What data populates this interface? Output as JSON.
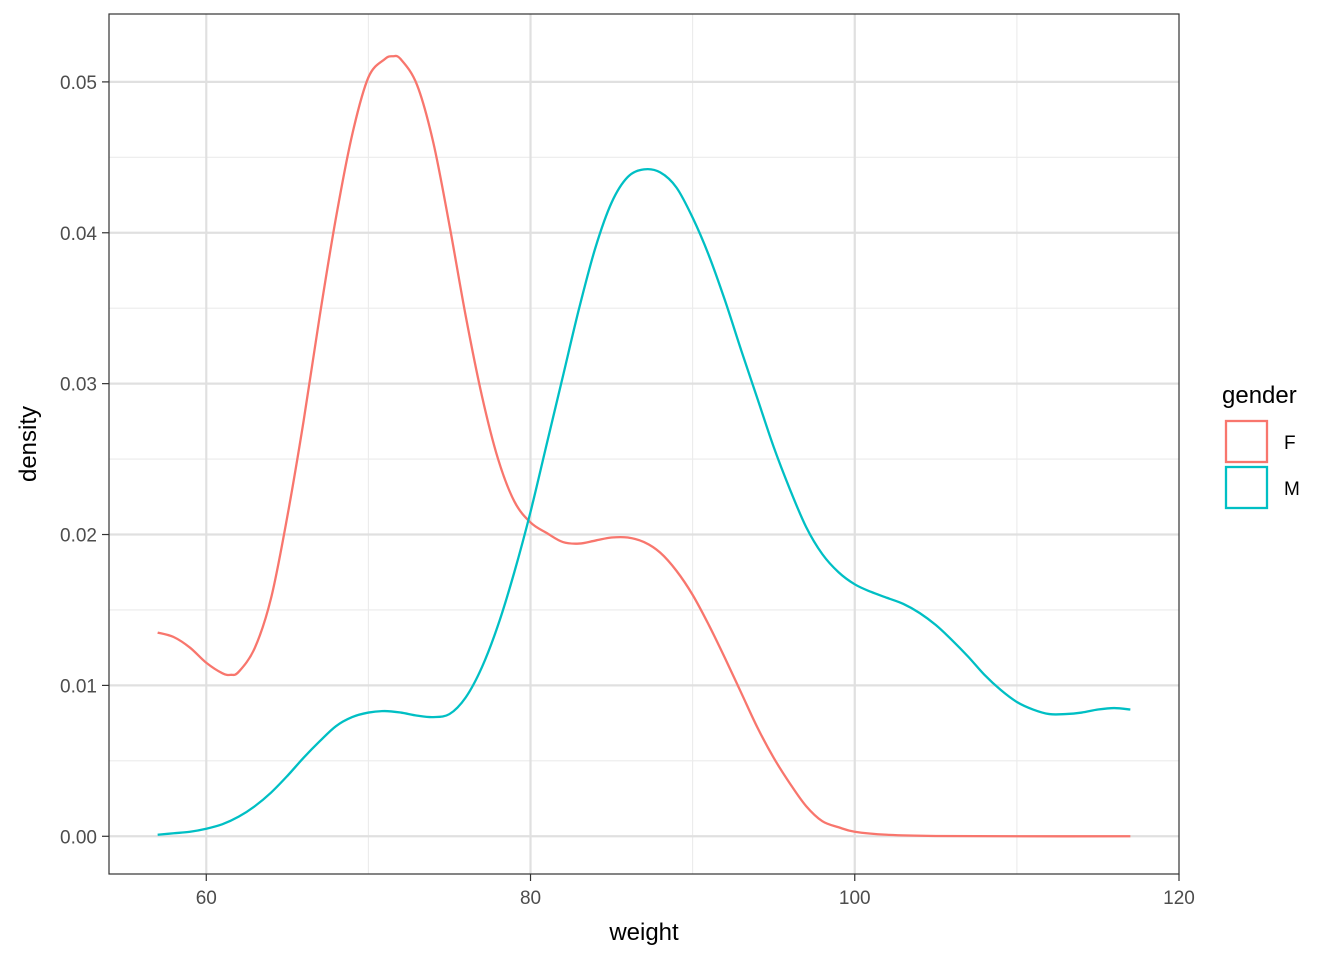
{
  "chart_data": {
    "type": "line",
    "title": "",
    "xlabel": "weight",
    "ylabel": "density",
    "xlim": [
      54,
      120
    ],
    "ylim": [
      -0.0025,
      0.0545
    ],
    "x_ticks": [
      60,
      80,
      100,
      120
    ],
    "x_tick_labels": [
      "60",
      "80",
      "100",
      "120"
    ],
    "y_ticks": [
      0.0,
      0.01,
      0.02,
      0.03,
      0.04,
      0.05
    ],
    "y_tick_labels": [
      "0.00",
      "0.01",
      "0.02",
      "0.03",
      "0.04",
      "0.05"
    ],
    "grid": true,
    "legend": {
      "title": "gender",
      "position": "right"
    },
    "series": [
      {
        "name": "F",
        "color": "#F8766D",
        "points": [
          [
            57,
            0.0135
          ],
          [
            58,
            0.0132
          ],
          [
            59,
            0.0125
          ],
          [
            60,
            0.0115
          ],
          [
            61,
            0.0108
          ],
          [
            61.5,
            0.0107
          ],
          [
            62,
            0.0109
          ],
          [
            63,
            0.0125
          ],
          [
            64,
            0.0158
          ],
          [
            65,
            0.0212
          ],
          [
            66,
            0.0275
          ],
          [
            67,
            0.0345
          ],
          [
            68,
            0.041
          ],
          [
            69,
            0.0465
          ],
          [
            70,
            0.0503
          ],
          [
            71,
            0.0515
          ],
          [
            71.5,
            0.0517
          ],
          [
            72,
            0.0515
          ],
          [
            73,
            0.0498
          ],
          [
            74,
            0.046
          ],
          [
            75,
            0.0405
          ],
          [
            76,
            0.0345
          ],
          [
            77,
            0.0292
          ],
          [
            78,
            0.025
          ],
          [
            79,
            0.0222
          ],
          [
            80,
            0.0208
          ],
          [
            81,
            0.0201
          ],
          [
            82,
            0.0195
          ],
          [
            83,
            0.0194
          ],
          [
            84,
            0.0196
          ],
          [
            85,
            0.0198
          ],
          [
            86,
            0.0198
          ],
          [
            87,
            0.0195
          ],
          [
            88,
            0.0188
          ],
          [
            89,
            0.0176
          ],
          [
            90,
            0.016
          ],
          [
            91,
            0.014
          ],
          [
            92,
            0.0118
          ],
          [
            93,
            0.0095
          ],
          [
            94,
            0.0072
          ],
          [
            95,
            0.0052
          ],
          [
            96,
            0.0035
          ],
          [
            97,
            0.002
          ],
          [
            98,
            0.001
          ],
          [
            99,
            0.0006
          ],
          [
            100,
            0.0003
          ],
          [
            102,
            0.0001
          ],
          [
            105,
            2e-05
          ],
          [
            110,
            0.0
          ],
          [
            117,
            0.0
          ]
        ]
      },
      {
        "name": "M",
        "color": "#00BFC4",
        "points": [
          [
            57,
            0.0001
          ],
          [
            58,
            0.0002
          ],
          [
            59,
            0.0003
          ],
          [
            60,
            0.0005
          ],
          [
            61,
            0.0008
          ],
          [
            62,
            0.0013
          ],
          [
            63,
            0.002
          ],
          [
            64,
            0.0029
          ],
          [
            65,
            0.004
          ],
          [
            66,
            0.0052
          ],
          [
            67,
            0.0063
          ],
          [
            68,
            0.0073
          ],
          [
            69,
            0.0079
          ],
          [
            70,
            0.0082
          ],
          [
            71,
            0.0083
          ],
          [
            72,
            0.0082
          ],
          [
            73,
            0.008
          ],
          [
            74,
            0.0079
          ],
          [
            75,
            0.0081
          ],
          [
            76,
            0.0092
          ],
          [
            77,
            0.0112
          ],
          [
            78,
            0.014
          ],
          [
            79,
            0.0175
          ],
          [
            80,
            0.0215
          ],
          [
            81,
            0.026
          ],
          [
            82,
            0.0305
          ],
          [
            83,
            0.035
          ],
          [
            84,
            0.039
          ],
          [
            85,
            0.042
          ],
          [
            86,
            0.0437
          ],
          [
            87,
            0.0442
          ],
          [
            88,
            0.044
          ],
          [
            89,
            0.043
          ],
          [
            90,
            0.041
          ],
          [
            91,
            0.0385
          ],
          [
            92,
            0.0355
          ],
          [
            93,
            0.0322
          ],
          [
            94,
            0.029
          ],
          [
            95,
            0.0258
          ],
          [
            96,
            0.023
          ],
          [
            97,
            0.0205
          ],
          [
            98,
            0.0187
          ],
          [
            99,
            0.0175
          ],
          [
            100,
            0.0167
          ],
          [
            101,
            0.0162
          ],
          [
            102,
            0.0158
          ],
          [
            103,
            0.0154
          ],
          [
            104,
            0.0148
          ],
          [
            105,
            0.014
          ],
          [
            106,
            0.013
          ],
          [
            107,
            0.0119
          ],
          [
            108,
            0.0107
          ],
          [
            109,
            0.0097
          ],
          [
            110,
            0.0089
          ],
          [
            111,
            0.0084
          ],
          [
            112,
            0.0081
          ],
          [
            113,
            0.0081
          ],
          [
            114,
            0.0082
          ],
          [
            115,
            0.0084
          ],
          [
            116,
            0.0085
          ],
          [
            117,
            0.0084
          ]
        ]
      }
    ]
  }
}
